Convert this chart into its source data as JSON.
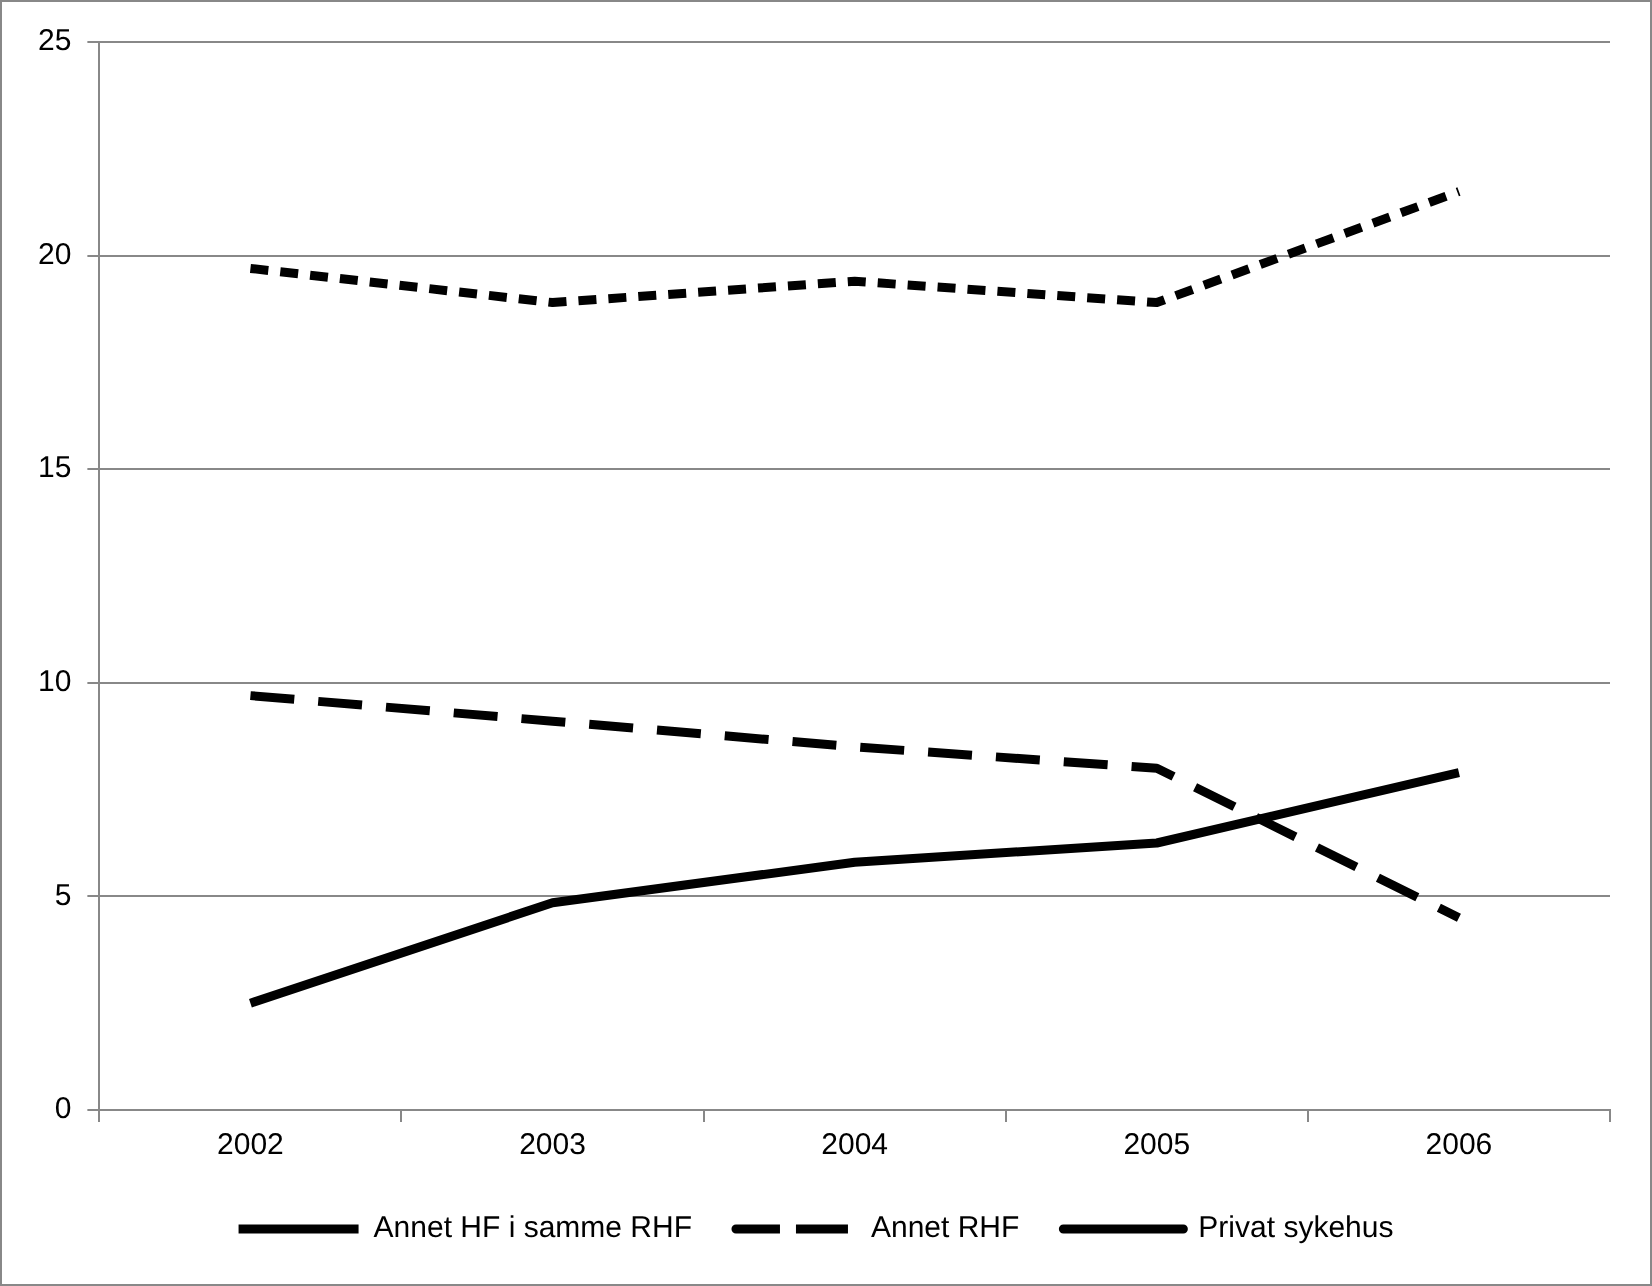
{
  "chart_data": {
    "type": "line",
    "categories": [
      "2002",
      "2003",
      "2004",
      "2005",
      "2006"
    ],
    "series": [
      {
        "name": "Annet HF i samme RHF",
        "color": "#000000",
        "line_style": "dotted",
        "values": [
          19.7,
          18.9,
          19.4,
          18.9,
          21.5
        ]
      },
      {
        "name": "Annet RHF",
        "color": "#000000",
        "line_style": "dashed",
        "values": [
          9.7,
          9.1,
          8.5,
          8.0,
          4.5
        ]
      },
      {
        "name": "Privat sykehus",
        "color": "#000000",
        "line_style": "solid",
        "values": [
          2.5,
          4.85,
          5.8,
          6.25,
          7.9
        ]
      }
    ],
    "ylim": [
      0,
      25
    ],
    "yticks": [
      0,
      5,
      10,
      15,
      20,
      25
    ],
    "grid": "y",
    "legend": "bottom",
    "marker": "none"
  }
}
